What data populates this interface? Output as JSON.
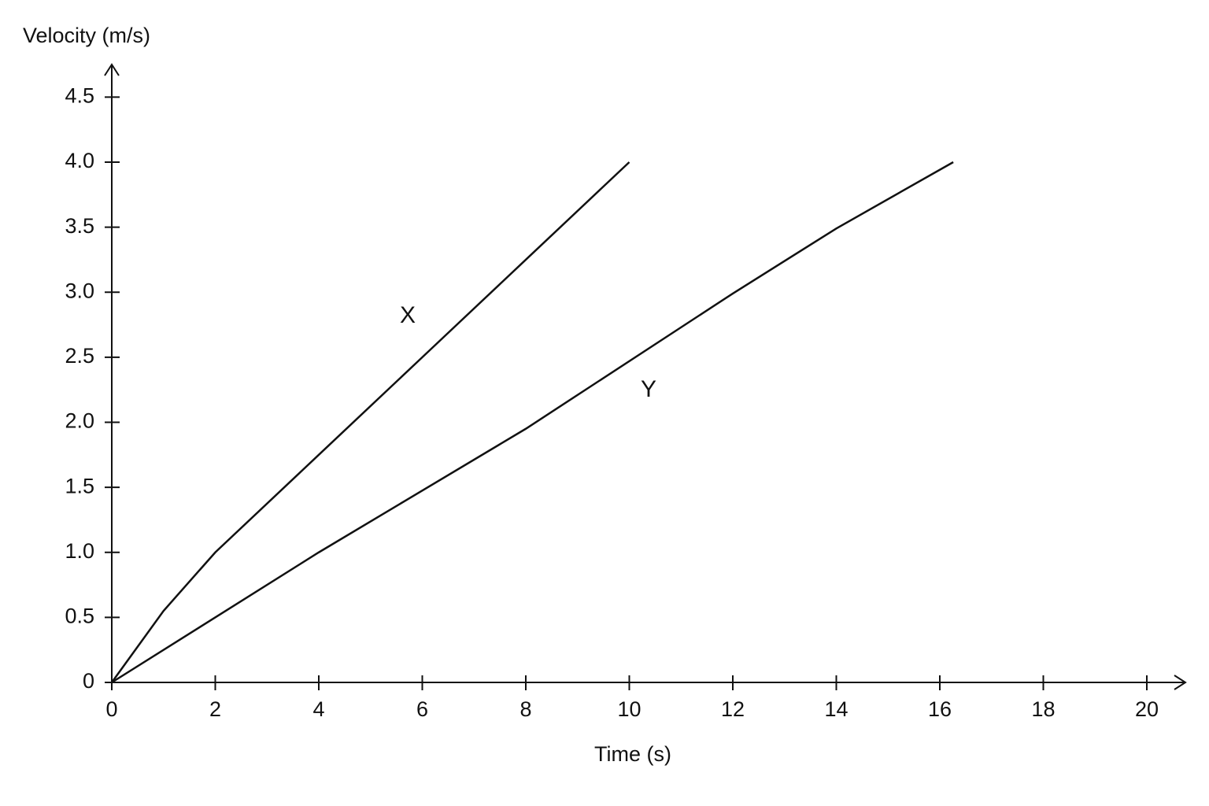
{
  "chart_data": {
    "type": "line",
    "x_label": "Time (s)",
    "y_label": "Velocity (m/s)",
    "xlim": [
      0,
      20.7
    ],
    "ylim": [
      0,
      4.75
    ],
    "xticks": [
      0,
      2,
      4,
      6,
      8,
      10,
      12,
      14,
      16,
      18,
      20
    ],
    "yticks": [
      0,
      0.5,
      {
        "value": 1,
        "label": "1.0"
      },
      1.5,
      {
        "value": 2,
        "label": "2.0"
      },
      2.5,
      {
        "value": 3,
        "label": "3.0"
      },
      3.5,
      {
        "value": 4,
        "label": "4.0"
      },
      4.5
    ],
    "grid": false,
    "series": [
      {
        "name": "X",
        "color": "#111111",
        "x": [
          0,
          1,
          2,
          4,
          6,
          8,
          10
        ],
        "values": [
          0,
          0.55,
          1.0,
          1.75,
          2.5,
          3.25,
          4.0
        ]
      },
      {
        "name": "Y",
        "color": "#111111",
        "x": [
          0,
          4,
          8,
          12,
          14,
          16.26
        ],
        "values": [
          0,
          1.0,
          1.95,
          2.99,
          3.49,
          4.0
        ]
      }
    ]
  }
}
